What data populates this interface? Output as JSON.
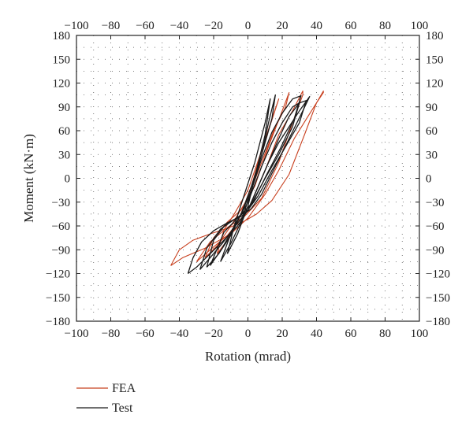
{
  "chart_data": {
    "type": "line",
    "title": "",
    "xlabel": "Rotation (mrad)",
    "ylabel": "Moment (kN·m)",
    "xlim": [
      -100,
      100
    ],
    "ylim": [
      -180,
      180
    ],
    "x_ticks": [
      "−100",
      "−80",
      "−60",
      "−40",
      "−20",
      "0",
      "20",
      "40",
      "60",
      "80",
      "100"
    ],
    "y_ticks": [
      "180",
      "150",
      "120",
      "90",
      "60",
      "30",
      "0",
      "−30",
      "−60",
      "−90",
      "−120",
      "−150",
      "−180"
    ],
    "grid": "dotted",
    "legend_position": "bottom-left",
    "series": [
      {
        "name": "FEA",
        "color": "#c8401f",
        "loops": [
          {
            "x": [
              -45,
              -38,
              -25,
              -10,
              0,
              10,
              18,
              27,
              35,
              40,
              44,
              44,
              40,
              33,
              24,
              14,
              5,
              -3,
              -12,
              -22,
              -32,
              -40,
              -45
            ],
            "y": [
              -110,
              -100,
              -88,
              -70,
              -50,
              -20,
              10,
              50,
              78,
              95,
              108,
              110,
              95,
              55,
              5,
              -28,
              -45,
              -55,
              -63,
              -70,
              -78,
              -90,
              -110
            ]
          },
          {
            "x": [
              -30,
              -22,
              -12,
              0,
              10,
              18,
              26,
              32,
              32,
              26,
              18,
              8,
              -2,
              -12,
              -22,
              -30
            ],
            "y": [
              -105,
              -90,
              -72,
              -40,
              10,
              55,
              85,
              110,
              105,
              70,
              20,
              -25,
              -48,
              -62,
              -80,
              -105
            ]
          },
          {
            "x": [
              -25,
              -18,
              -10,
              0,
              8,
              15,
              22,
              24,
              20,
              12,
              4,
              -4,
              -12,
              -20,
              -25
            ],
            "y": [
              -100,
              -85,
              -60,
              -25,
              20,
              60,
              90,
              108,
              85,
              40,
              -10,
              -40,
              -55,
              -75,
              -100
            ]
          },
          {
            "x": [
              -18,
              -12,
              -5,
              2,
              8,
              14,
              18,
              15,
              8,
              0,
              -8,
              -14,
              -18
            ],
            "y": [
              -95,
              -78,
              -50,
              -10,
              35,
              75,
              100,
              80,
              35,
              -15,
              -45,
              -65,
              -95
            ]
          }
        ]
      },
      {
        "name": "Test",
        "color": "#1a1a1a",
        "loops": [
          {
            "x": [
              -35,
              -30,
              -22,
              -14,
              -6,
              0,
              6,
              12,
              18,
              24,
              30,
              35,
              36,
              32,
              24,
              16,
              8,
              2,
              -4,
              -12,
              -20,
              -27,
              -32,
              -35
            ],
            "y": [
              -120,
              -112,
              -95,
              -78,
              -60,
              -40,
              -10,
              20,
              45,
              65,
              85,
              100,
              103,
              85,
              50,
              15,
              -20,
              -38,
              -48,
              -56,
              -66,
              -80,
              -100,
              -120
            ]
          },
          {
            "x": [
              -28,
              -22,
              -15,
              -8,
              0,
              6,
              12,
              18,
              24,
              30,
              34,
              30,
              22,
              14,
              6,
              0,
              -8,
              -16,
              -24,
              -28
            ],
            "y": [
              -115,
              -100,
              -82,
              -62,
              -40,
              -10,
              20,
              50,
              78,
              95,
              98,
              70,
              40,
              10,
              -22,
              -40,
              -52,
              -64,
              -88,
              -115
            ]
          },
          {
            "x": [
              -22,
              -15,
              -8,
              0,
              8,
              14,
              20,
              26,
              30,
              26,
              18,
              10,
              2,
              -6,
              -14,
              -22
            ],
            "y": [
              -110,
              -88,
              -60,
              -30,
              15,
              45,
              70,
              90,
              95,
              65,
              30,
              0,
              -32,
              -50,
              -68,
              -110
            ]
          },
          {
            "x": [
              -16,
              -10,
              -4,
              2,
              8,
              12,
              16,
              14,
              8,
              2,
              -4,
              -10,
              -16
            ],
            "y": [
              -105,
              -82,
              -55,
              -15,
              30,
              70,
              105,
              75,
              30,
              -10,
              -45,
              -70,
              -105
            ]
          },
          {
            "x": [
              -12,
              -6,
              0,
              5,
              10,
              13,
              10,
              4,
              -2,
              -8,
              -12
            ],
            "y": [
              -95,
              -70,
              -35,
              10,
              55,
              100,
              70,
              20,
              -20,
              -60,
              -95
            ]
          },
          {
            "x": [
              -24,
              -17,
              -10,
              -4,
              2,
              8,
              14,
              20,
              26,
              31,
              27,
              19,
              11,
              3,
              -5,
              -13,
              -20,
              -24
            ],
            "y": [
              -112,
              -95,
              -72,
              -45,
              -15,
              25,
              58,
              82,
              100,
              104,
              75,
              38,
              5,
              -30,
              -48,
              -58,
              -78,
              -112
            ]
          }
        ]
      }
    ]
  }
}
